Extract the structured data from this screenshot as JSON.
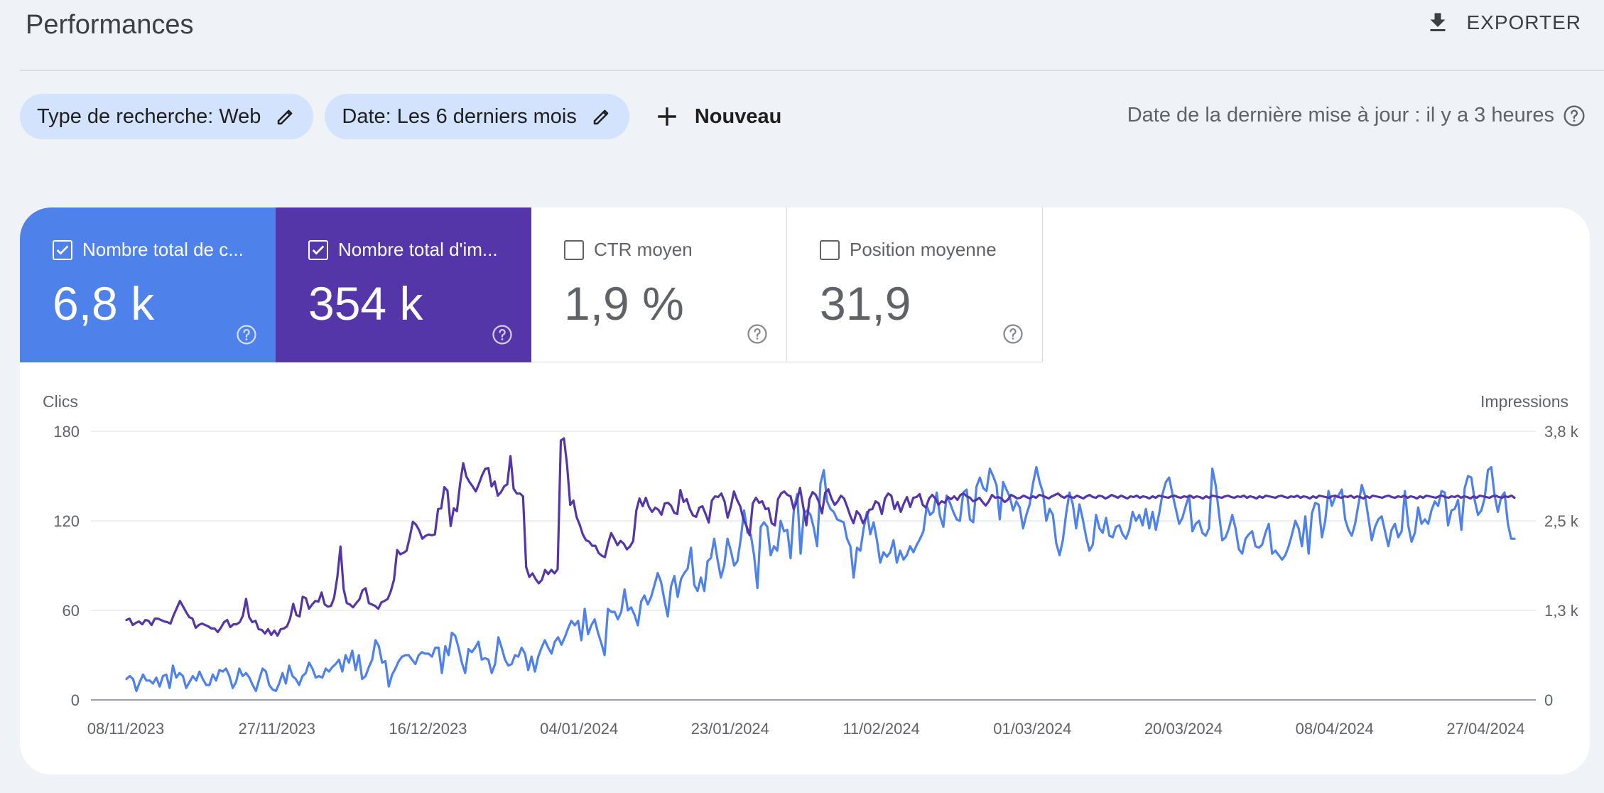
{
  "header": {
    "title": "Performances",
    "export_label": "EXPORTER"
  },
  "filters": {
    "search_type": "Type de recherche: Web",
    "date": "Date: Les 6 derniers mois",
    "new_label": "Nouveau",
    "last_update": "Date de la dernière mise à jour : il y a 3 heures"
  },
  "metrics": [
    {
      "label": "Nombre total de c...",
      "value": "6,8 k",
      "checked": true,
      "color": "#4e81e9"
    },
    {
      "label": "Nombre total d'im...",
      "value": "354 k",
      "checked": true,
      "color": "#5436a9"
    },
    {
      "label": "CTR moyen",
      "value": "1,9 %",
      "checked": false
    },
    {
      "label": "Position moyenne",
      "value": "31,9",
      "checked": false
    }
  ],
  "colors": {
    "clicks": "#4e81e9",
    "impressions": "#5436a9",
    "chip": "#d3e3fd",
    "background": "#eff2f6"
  },
  "chart_data": {
    "type": "line",
    "ylabel_left": "Clics",
    "ylabel_right": "Impressions",
    "y_left_ticks": [
      "180",
      "120",
      "60",
      "0"
    ],
    "y_right_ticks": [
      "3,8 k",
      "2,5 k",
      "1,3 k",
      "0"
    ],
    "ylim_left": [
      0,
      180
    ],
    "ylim_right": [
      0,
      3800
    ],
    "x_ticks": [
      "08/11/2023",
      "27/11/2023",
      "16/12/2023",
      "04/01/2024",
      "23/01/2024",
      "11/02/2024",
      "01/03/2024",
      "20/03/2024",
      "08/04/2024",
      "27/04/2024"
    ],
    "x_start": "08/11/2023",
    "grid": true,
    "series": [
      {
        "name": "Clics",
        "axis": "left",
        "color": "#4e81e9",
        "values": [
          14,
          16,
          14,
          6,
          12,
          17,
          13,
          13,
          11,
          15,
          9,
          16,
          17,
          8,
          23,
          15,
          18,
          16,
          8,
          12,
          16,
          13,
          19,
          14,
          10,
          10,
          17,
          13,
          20,
          19,
          21,
          16,
          8,
          12,
          21,
          16,
          18,
          15,
          10,
          6,
          14,
          21,
          19,
          10,
          7,
          6,
          11,
          18,
          11,
          23,
          16,
          14,
          10,
          16,
          18,
          25,
          21,
          15,
          16,
          15,
          21,
          19,
          22,
          24,
          27,
          19,
          30,
          25,
          33,
          20,
          30,
          14,
          16,
          22,
          27,
          40,
          36,
          25,
          26,
          9,
          17,
          21,
          26,
          29,
          30,
          30,
          27,
          24,
          30,
          32,
          31,
          31,
          29,
          35,
          35,
          18,
          36,
          30,
          45,
          43,
          35,
          25,
          18,
          34,
          32,
          35,
          39,
          27,
          28,
          27,
          18,
          24,
          42,
          35,
          27,
          23,
          24,
          30,
          29,
          35,
          31,
          20,
          29,
          19,
          29,
          35,
          40,
          35,
          31,
          39,
          42,
          37,
          42,
          48,
          53,
          50,
          53,
          40,
          61,
          44,
          50,
          54,
          45,
          38,
          30,
          61,
          59,
          59,
          54,
          59,
          74,
          60,
          62,
          57,
          50,
          66,
          70,
          64,
          69,
          77,
          85,
          79,
          67,
          56,
          76,
          83,
          69,
          81,
          85,
          88,
          102,
          77,
          73,
          82,
          73,
          93,
          95,
          108,
          94,
          82,
          90,
          108,
          100,
          90,
          93,
          108,
          127,
          112,
          111,
          97,
          75,
          116,
          119,
          116,
          97,
          103,
          100,
          120,
          113,
          114,
          95,
          128,
          138,
          98,
          125,
          127,
          124,
          115,
          103,
          145,
          154,
          133,
          128,
          126,
          121,
          120,
          119,
          108,
          103,
          82,
          102,
          100,
          115,
          126,
          111,
          119,
          107,
          92,
          99,
          96,
          99,
          107,
          92,
          100,
          94,
          97,
          103,
          99,
          104,
          108,
          113,
          130,
          124,
          126,
          139,
          123,
          116,
          137,
          132,
          126,
          121,
          120,
          139,
          141,
          121,
          119,
          143,
          149,
          142,
          140,
          155,
          150,
          144,
          121,
          146,
          141,
          136,
          127,
          133,
          129,
          115,
          124,
          131,
          145,
          156,
          146,
          139,
          120,
          128,
          124,
          105,
          97,
          107,
          125,
          139,
          131,
          115,
          131,
          121,
          109,
          100,
          104,
          124,
          115,
          112,
          122,
          110,
          109,
          116,
          117,
          111,
          108,
          114,
          126,
          120,
          124,
          117,
          128,
          115,
          126,
          114,
          125,
          138,
          146,
          149,
          138,
          128,
          118,
          122,
          130,
          137,
          113,
          118,
          120,
          112,
          110,
          115,
          155,
          144,
          125,
          107,
          109,
          115,
          124,
          115,
          101,
          98,
          108,
          111,
          113,
          103,
          102,
          104,
          112,
          118,
          98,
          100,
          97,
          94,
          97,
          103,
          111,
          120,
          115,
          103,
          123,
          98,
          125,
          132,
          131,
          109,
          120,
          140,
          130,
          136,
          137,
          141,
          121,
          114,
          110,
          118,
          131,
          144,
          137,
          122,
          107,
          116,
          121,
          123,
          113,
          103,
          114,
          118,
          109,
          113,
          140,
          117,
          106,
          112,
          129,
          118,
          121,
          118,
          127,
          133,
          130,
          140,
          139,
          117,
          127,
          128,
          134,
          114,
          142,
          150,
          149,
          134,
          124,
          127,
          135,
          154,
          156,
          137,
          126,
          136,
          139,
          118,
          108,
          108
        ]
      },
      {
        "name": "Impressions",
        "axis": "right",
        "color": "#5436a9",
        "values": [
          1130,
          1150,
          1060,
          1090,
          1110,
          1070,
          1130,
          1120,
          1060,
          1150,
          1150,
          1130,
          1110,
          1100,
          1080,
          1200,
          1300,
          1400,
          1320,
          1240,
          1170,
          1150,
          1020,
          1060,
          1080,
          1060,
          1040,
          1010,
          1010,
          960,
          1020,
          1100,
          1130,
          1030,
          1070,
          1070,
          1100,
          1190,
          1430,
          1170,
          1100,
          1120,
          1000,
          990,
          940,
          1000,
          920,
          980,
          910,
          1000,
          1010,
          1040,
          1150,
          1360,
          1200,
          1180,
          1460,
          1440,
          1290,
          1350,
          1400,
          1390,
          1520,
          1350,
          1320,
          1330,
          1450,
          1740,
          2170,
          1570,
          1370,
          1350,
          1310,
          1370,
          1420,
          1550,
          1580,
          1370,
          1350,
          1330,
          1290,
          1380,
          1400,
          1430,
          1540,
          1700,
          2120,
          2060,
          2080,
          2110,
          2300,
          2520,
          2480,
          2400,
          2280,
          2320,
          2340,
          2330,
          2340,
          2700,
          2710,
          3010,
          2960,
          2460,
          2710,
          2670,
          3060,
          3350,
          3160,
          3080,
          3020,
          2950,
          3060,
          3180,
          3270,
          3280,
          3020,
          3090,
          2890,
          2940,
          3020,
          3050,
          3450,
          2990,
          2920,
          2920,
          2880,
          1880,
          1740,
          1790,
          1710,
          1650,
          1700,
          1840,
          1780,
          1840,
          1790,
          1850,
          3670,
          3700,
          3320,
          2760,
          2820,
          2590,
          2480,
          2340,
          2260,
          2240,
          2180,
          2180,
          2080,
          2040,
          2020,
          2210,
          2360,
          2280,
          2190,
          2250,
          2210,
          2130,
          2170,
          2250,
          2680,
          2850,
          2740,
          2860,
          2730,
          2660,
          2720,
          2690,
          2620,
          2780,
          2790,
          2750,
          2650,
          2630,
          2970,
          2800,
          2840,
          2700,
          2610,
          2590,
          2720,
          2740,
          2630,
          2510,
          2820,
          2880,
          2870,
          2920,
          2810,
          2580,
          2730,
          2950,
          2830,
          2740,
          2560,
          2460,
          2330,
          2780,
          2860,
          2790,
          2810,
          2700,
          2710,
          2500,
          2470,
          2840,
          2920,
          2950,
          2900,
          2880,
          2700,
          2810,
          3000,
          2740,
          2470,
          2840,
          2940,
          2900,
          2800,
          2640,
          2930,
          2980,
          2850,
          2760,
          2810,
          2890,
          2850,
          2730,
          2600,
          2500,
          2670,
          2620,
          2500,
          2580,
          2690,
          2700,
          2810,
          2780,
          2630,
          2850,
          2920,
          2890,
          2700,
          2800,
          2660,
          2780,
          2870,
          2730,
          2860,
          2870,
          2910,
          2760,
          2720,
          2850,
          2900,
          2850,
          2760,
          2810,
          2790,
          2870,
          2840,
          2880,
          2830,
          2900,
          2920,
          2880,
          2860,
          2810,
          2830,
          2860,
          2800,
          2750,
          2810,
          2900,
          2860,
          2870,
          2850,
          2800,
          2830,
          2900,
          2880,
          2850,
          2860,
          2890,
          2870,
          2850,
          2880,
          2860,
          2900,
          2890,
          2870,
          2850,
          2880,
          2900,
          2920,
          2880,
          2860,
          2890,
          2870,
          2860,
          2890,
          2870,
          2850,
          2880,
          2900,
          2870,
          2860,
          2890,
          2880,
          2850,
          2870,
          2900,
          2880,
          2860,
          2890,
          2870,
          2850,
          2880,
          2870,
          2890,
          2860,
          2880,
          2870,
          2850,
          2880,
          2860,
          2890,
          2880,
          2870,
          2860,
          2880,
          2890,
          2870,
          2860,
          2880,
          2870,
          2890,
          2860,
          2880,
          2870,
          2850,
          2880,
          2860,
          2890,
          2880,
          2870,
          2860,
          2880,
          2890,
          2870,
          2860,
          2880,
          2870,
          2890,
          2860,
          2880,
          2870,
          2850,
          2880,
          2860,
          2890,
          2880,
          2870,
          2860,
          2880,
          2890,
          2870,
          2860,
          2880,
          2870,
          2890,
          2860,
          2880,
          2870,
          2850,
          2880,
          2860,
          2890,
          2880,
          2870,
          2860,
          2880,
          2890,
          2870,
          2860,
          2880,
          2870,
          2890,
          2860,
          2880,
          2870,
          2850,
          2880,
          2860,
          2890,
          2880,
          2870,
          2860,
          2880,
          2890,
          2870,
          2860,
          2880,
          2870,
          2890,
          2860,
          2880,
          2870,
          2850,
          2880,
          2860,
          2890,
          2880,
          2870,
          2860,
          2880,
          2890,
          2870,
          2860,
          2880,
          2870,
          2890,
          2860,
          2880,
          2870,
          2850,
          2880,
          2860,
          2890,
          2880,
          2870,
          2860,
          2880,
          2890,
          2870,
          2860,
          2880,
          2870,
          2890,
          2860
        ]
      }
    ]
  }
}
